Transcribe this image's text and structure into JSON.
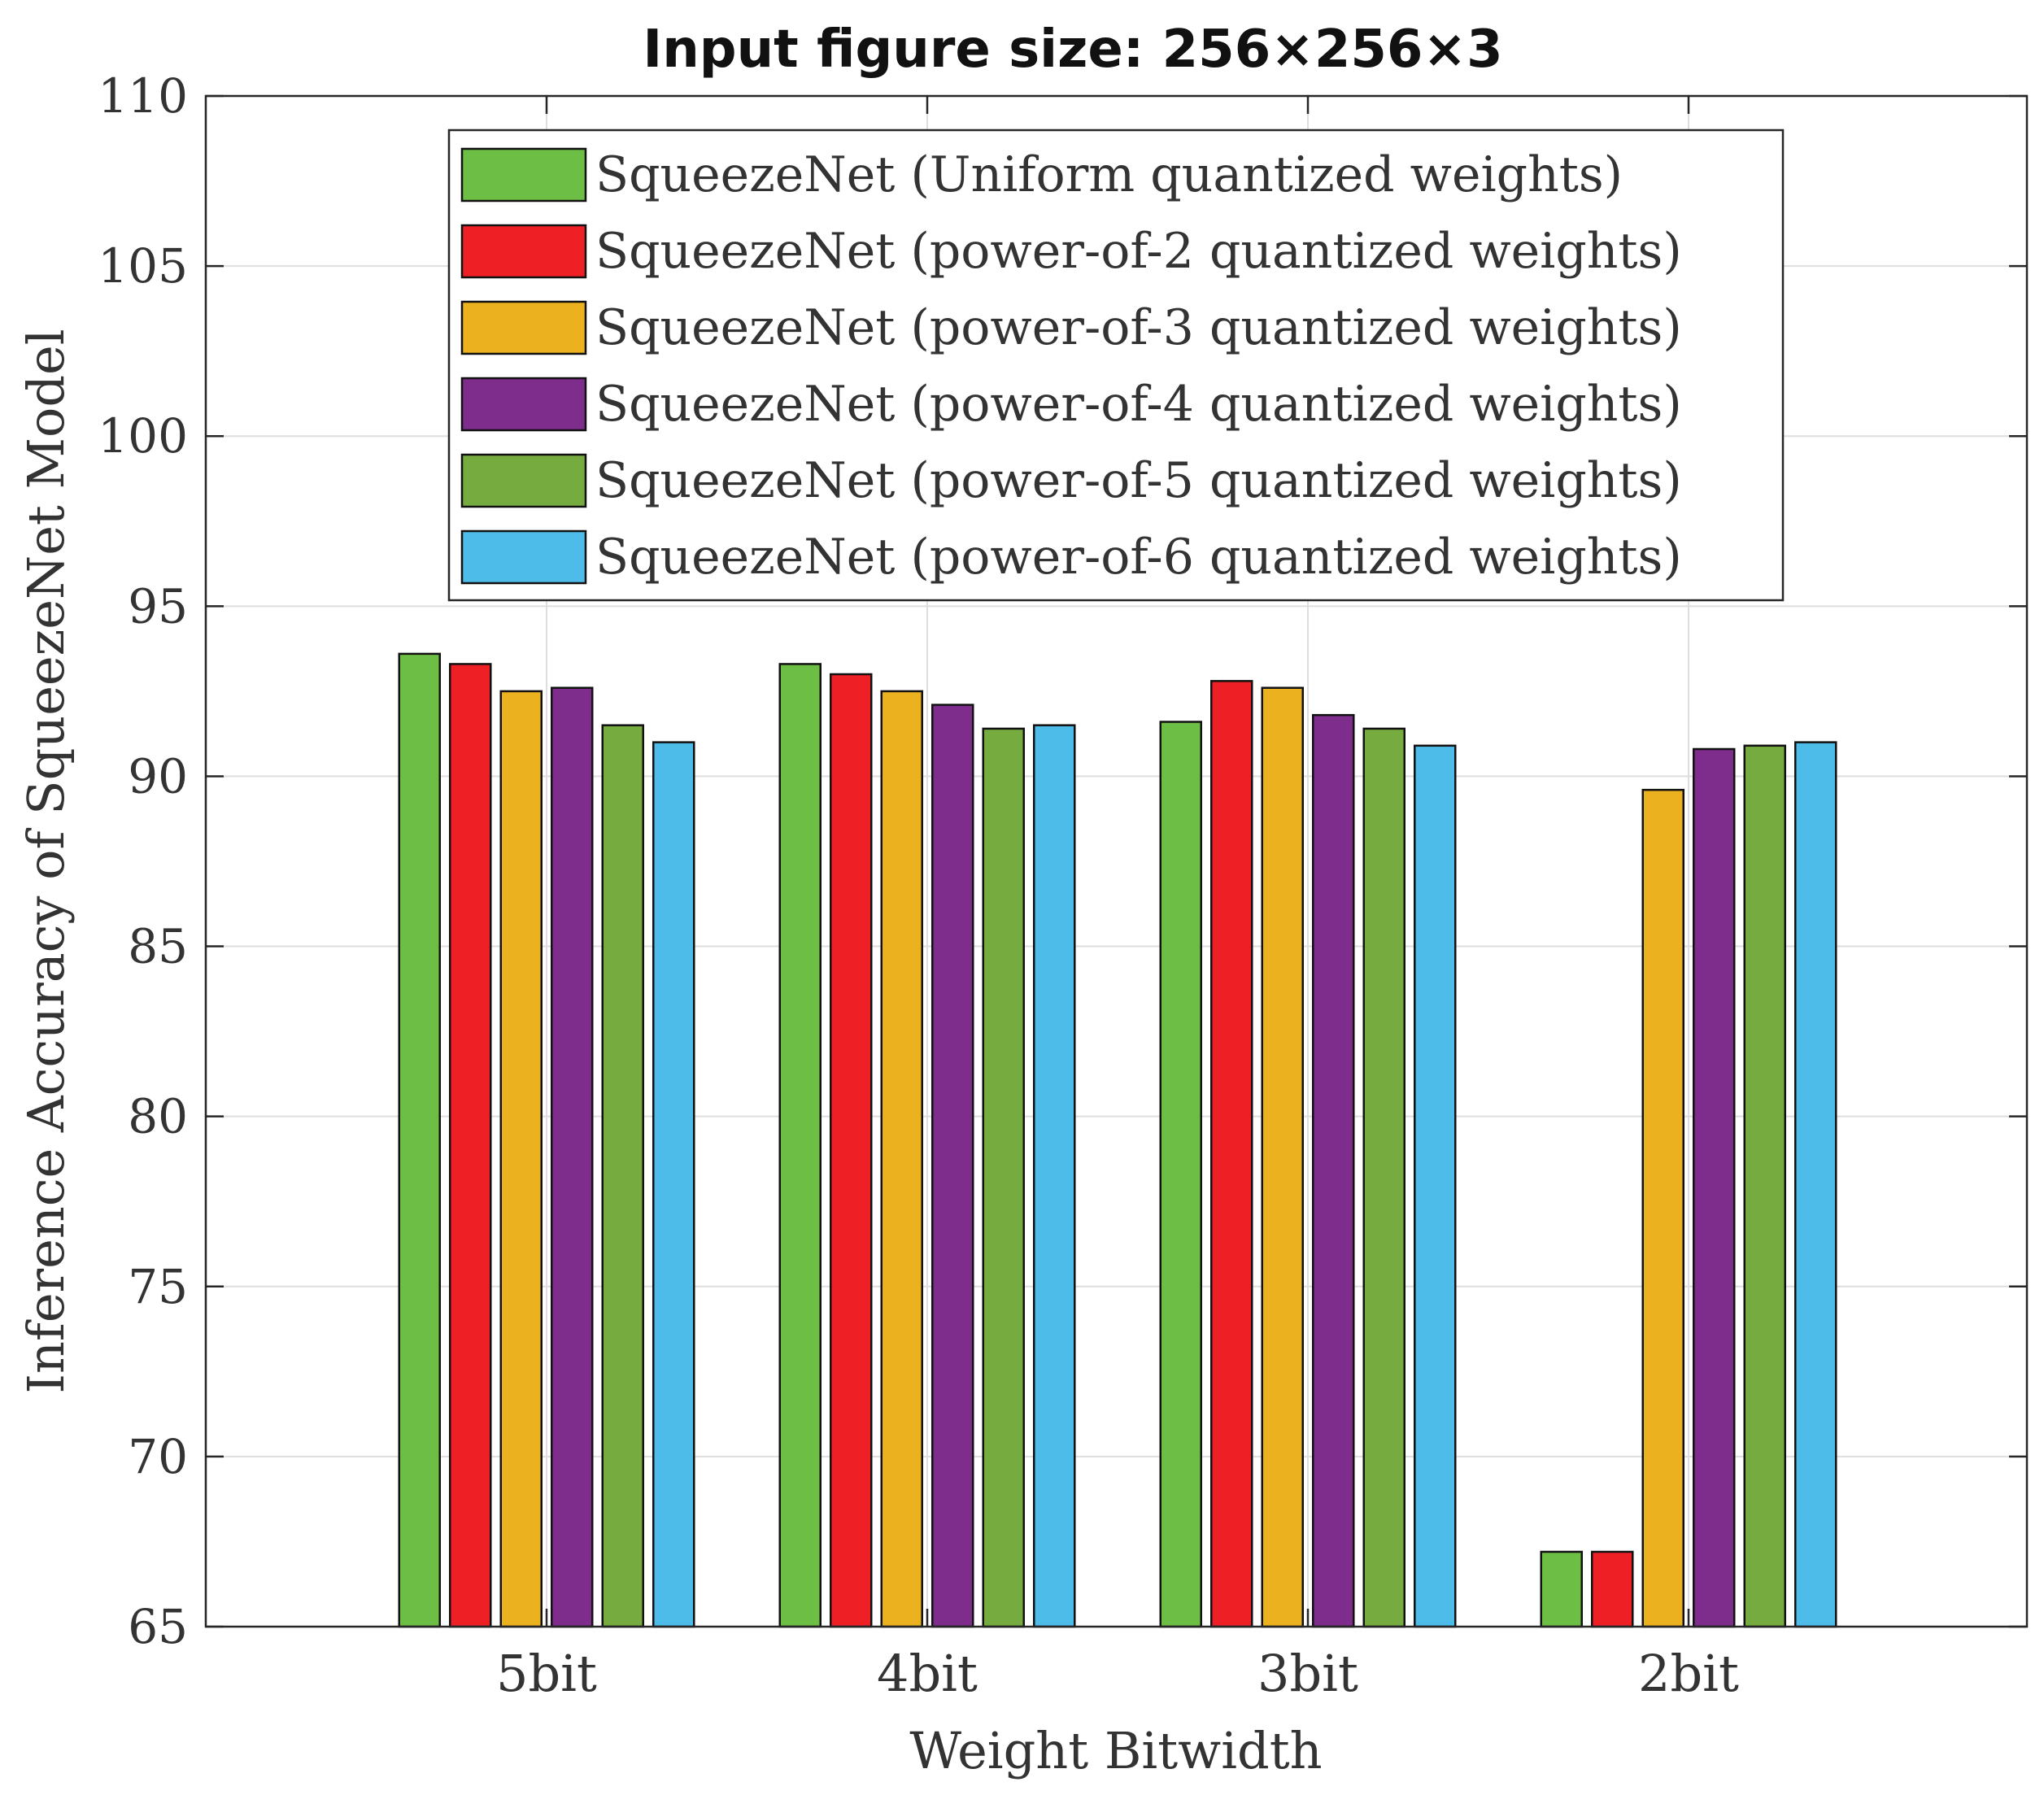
{
  "chart_data": {
    "type": "bar",
    "title": "Input figure size: 256×256×3",
    "xlabel": "Weight Bitwidth",
    "ylabel": "Inference Accuracy of SqueezeNet Model",
    "categories": [
      "5bit",
      "4bit",
      "3bit",
      "2bit"
    ],
    "ylim": [
      65,
      110
    ],
    "yticks": [
      65,
      70,
      75,
      80,
      85,
      90,
      95,
      100,
      105,
      110
    ],
    "grid": true,
    "legend_position": "top-center",
    "series": [
      {
        "name": "SqueezeNet (Uniform quantized weights)",
        "color": "#6cbe45",
        "values": [
          93.6,
          93.3,
          91.6,
          67.2
        ]
      },
      {
        "name": "SqueezeNet (power-of-2 quantized weights)",
        "color": "#ee2026",
        "values": [
          93.3,
          93.0,
          92.8,
          67.2
        ]
      },
      {
        "name": "SqueezeNet (power-of-3 quantized weights)",
        "color": "#ebb11e",
        "values": [
          92.5,
          92.5,
          92.6,
          89.6
        ]
      },
      {
        "name": "SqueezeNet (power-of-4 quantized weights)",
        "color": "#7e2d8c",
        "values": [
          92.6,
          92.1,
          91.8,
          90.8
        ]
      },
      {
        "name": "SqueezeNet (power-of-5 quantized weights)",
        "color": "#76ab3f",
        "values": [
          91.5,
          91.4,
          91.4,
          90.9
        ]
      },
      {
        "name": "SqueezeNet (power-of-6 quantized weights)",
        "color": "#4dbce9",
        "values": [
          91.0,
          91.5,
          90.9,
          91.0
        ]
      }
    ]
  }
}
